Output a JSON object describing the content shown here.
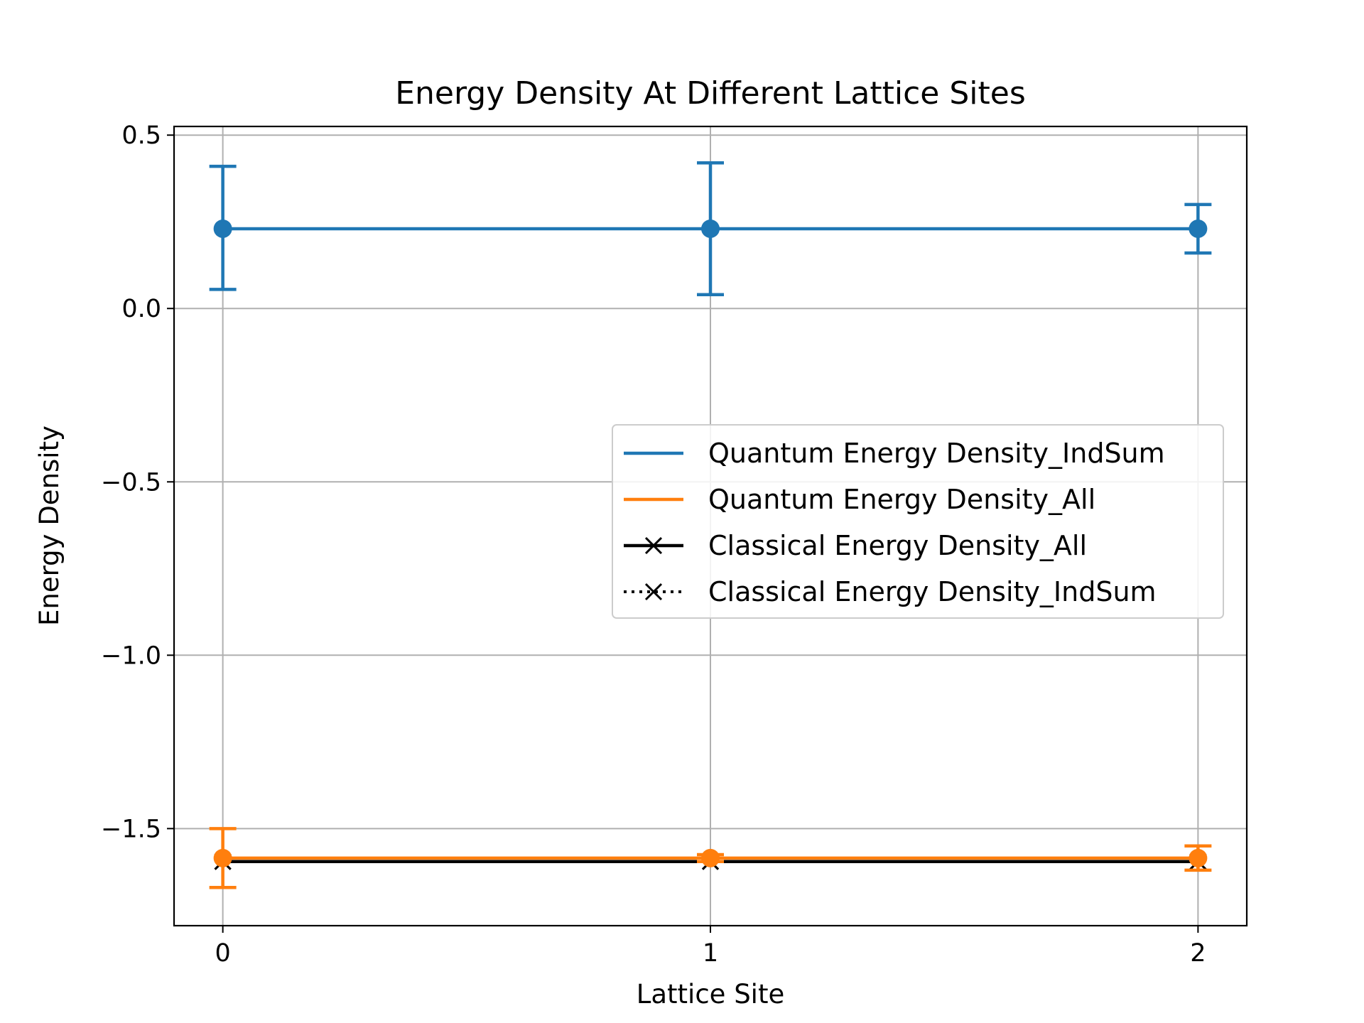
{
  "chart_data": {
    "type": "line",
    "title": "Energy Density At Different Lattice Sites",
    "xlabel": "Lattice Site",
    "ylabel": "Energy Density",
    "x": [
      0,
      1,
      2
    ],
    "xticks": [
      0,
      1,
      2
    ],
    "xtick_labels": [
      "0",
      "1",
      "2"
    ],
    "yticks": [
      0.5,
      0.0,
      -0.5,
      -1.0,
      -1.5
    ],
    "ytick_labels": [
      "0.5",
      "0.0",
      "−0.5",
      "−1.0",
      "−1.5"
    ],
    "xlim": [
      -0.1,
      2.1
    ],
    "ylim": [
      -1.78,
      0.525
    ],
    "grid": true,
    "legend_position": "center-right",
    "series": [
      {
        "name": "Quantum Energy Density_IndSum",
        "color": "#1f77b4",
        "line_style": "solid",
        "marker": "circle",
        "values": [
          0.23,
          0.23,
          0.23
        ],
        "error_lower": [
          0.055,
          0.04,
          0.16
        ],
        "error_upper": [
          0.41,
          0.42,
          0.3
        ]
      },
      {
        "name": "Quantum Energy Density_All",
        "color": "#ff7f0e",
        "line_style": "solid",
        "marker": "circle",
        "values": [
          -1.585,
          -1.585,
          -1.585
        ],
        "error_lower": [
          -1.67,
          -1.595,
          -1.62
        ],
        "error_upper": [
          -1.5,
          -1.575,
          -1.55
        ]
      },
      {
        "name": "Classical Energy Density_All",
        "color": "#000000",
        "line_style": "solid",
        "marker": "x",
        "values": [
          -1.595,
          -1.595,
          -1.595
        ]
      },
      {
        "name": "Classical Energy Density_IndSum",
        "color": "#000000",
        "line_style": "dotted",
        "marker": "x",
        "values": [
          -1.595,
          -1.595,
          -1.595
        ]
      }
    ]
  }
}
